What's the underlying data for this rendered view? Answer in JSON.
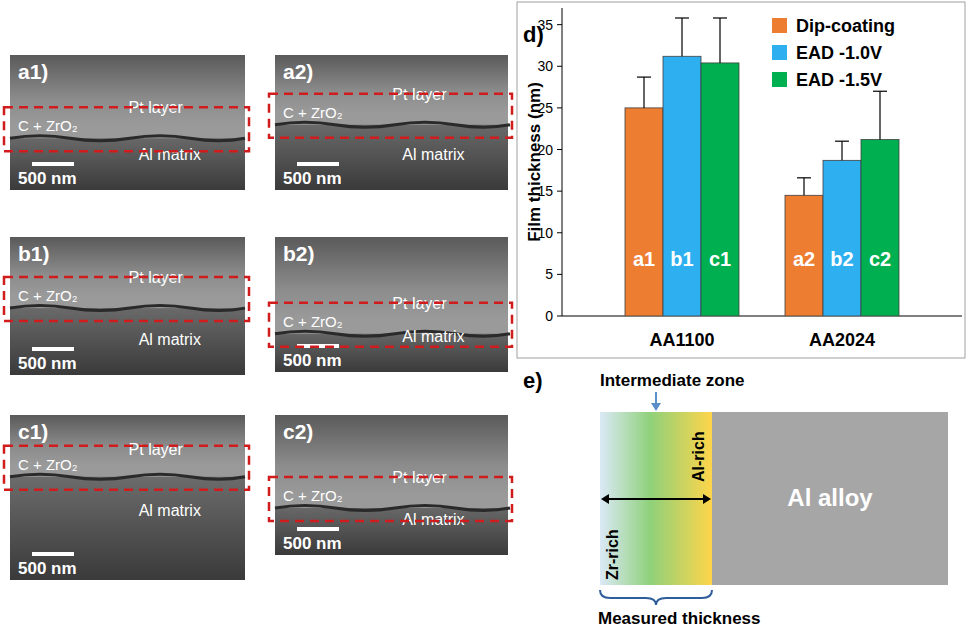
{
  "panels": [
    {
      "label": "a1)",
      "top": "Pt layer",
      "film": "C + ZrO₂",
      "bottom": "Al matrix",
      "scale_bar": "500 nm"
    },
    {
      "label": "a2)",
      "top": "Pt layer",
      "film": "C + ZrO₂",
      "bottom": "Al matrix",
      "scale_bar": "500 nm"
    },
    {
      "label": "b1)",
      "top": "Pt layer",
      "film": "C + ZrO₂",
      "bottom": "Al matrix",
      "scale_bar": "500 nm"
    },
    {
      "label": "b2)",
      "top": "Pt layer",
      "film": "C + ZrO₂",
      "bottom": "Al matrix",
      "scale_bar": "500 nm"
    },
    {
      "label": "c1)",
      "top": "Pt layer",
      "film": "C + ZrO₂",
      "bottom": "Al matrix",
      "scale_bar": "500 nm"
    },
    {
      "label": "c2)",
      "top": "Pt layer",
      "film": "C + ZrO₂",
      "bottom": "Al matrix",
      "scale_bar": "500 nm"
    }
  ],
  "chart_data": {
    "type": "bar",
    "title": "d)",
    "y_label": "Film thickness (nm)",
    "categories": [
      "AA1100",
      "AA2024"
    ],
    "series": [
      {
        "name": "Dip-coating",
        "color": "#ed7d31",
        "values": [
          25.0,
          14.5
        ],
        "errors": [
          3.7,
          2.1
        ],
        "labels": [
          "a1",
          "a2"
        ]
      },
      {
        "name": "EAD -1.0V",
        "color": "#2eaff0",
        "values": [
          31.2,
          18.7
        ],
        "errors": [
          4.6,
          2.3
        ],
        "labels": [
          "b1",
          "b2"
        ]
      },
      {
        "name": "EAD -1.5V",
        "color": "#00b050",
        "values": [
          30.4,
          21.2
        ],
        "errors": [
          5.4,
          5.8
        ],
        "labels": [
          "c1",
          "c2"
        ]
      }
    ],
    "ylim": [
      0,
      37
    ],
    "yticks": [
      0,
      5,
      10,
      15,
      20,
      25,
      30,
      35
    ],
    "legend": "upper right",
    "grid": false
  },
  "diagram": {
    "label": "e)",
    "zone": "Intermediate zone",
    "left": "Zr-rich",
    "right": "Al-rich",
    "substrate": "Al alloy",
    "caption": "Measured thickness"
  }
}
